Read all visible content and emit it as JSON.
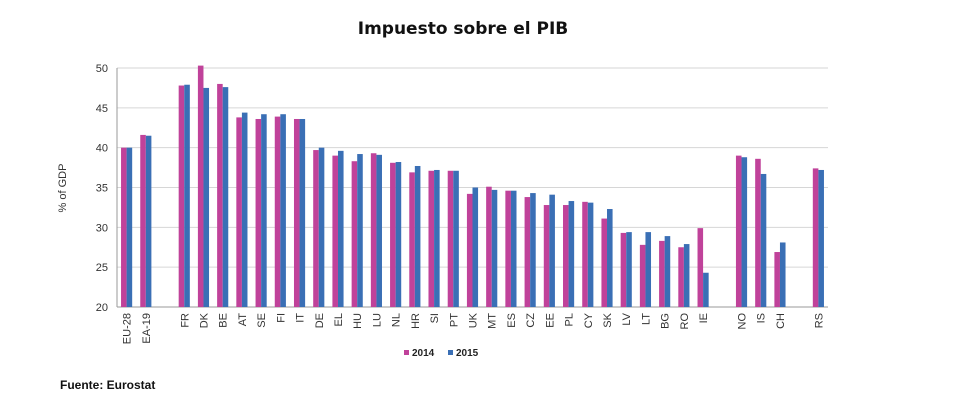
{
  "source": "Fuente: Eurostat",
  "chart_data": {
    "type": "bar",
    "title": "Impuesto sobre el PIB",
    "ylabel": "% of GDP",
    "xlabel": "",
    "ylim": [
      20,
      50
    ],
    "yticks": [
      20,
      25,
      30,
      35,
      40,
      45,
      50
    ],
    "grid": true,
    "legend": "bottom",
    "categories": [
      "EU-28",
      "EA-19",
      "",
      "FR",
      "DK",
      "BE",
      "AT",
      "SE",
      "FI",
      "IT",
      "DE",
      "EL",
      "HU",
      "LU",
      "NL",
      "HR",
      "SI",
      "PT",
      "UK",
      "MT",
      "ES",
      "CZ",
      "EE",
      "PL",
      "CY",
      "SK",
      "LV",
      "LT",
      "BG",
      "RO",
      "IE",
      "",
      "NO",
      "IS",
      "CH",
      "",
      "RS"
    ],
    "series": [
      {
        "name": "2014",
        "color": "#c0429a",
        "values": [
          40.0,
          41.6,
          null,
          47.8,
          50.3,
          48.0,
          43.8,
          43.6,
          43.9,
          43.6,
          39.7,
          39.0,
          38.3,
          39.3,
          38.1,
          36.9,
          37.1,
          37.1,
          34.2,
          35.1,
          34.6,
          33.8,
          32.8,
          32.8,
          33.2,
          31.1,
          29.3,
          27.8,
          28.3,
          27.5,
          29.9,
          null,
          39.0,
          38.6,
          26.9,
          null,
          37.4
        ],
        "value_labels_shown": false
      },
      {
        "name": "2015",
        "color": "#3a6fb5",
        "values": [
          40.0,
          41.5,
          null,
          47.9,
          47.5,
          47.6,
          44.4,
          44.2,
          44.2,
          43.6,
          40.0,
          39.6,
          39.2,
          39.1,
          38.2,
          37.7,
          37.2,
          37.1,
          35.0,
          34.7,
          34.6,
          34.3,
          34.1,
          33.3,
          33.1,
          32.3,
          29.4,
          29.4,
          28.9,
          27.9,
          24.3,
          null,
          38.8,
          36.7,
          28.1,
          null,
          37.2
        ]
      }
    ]
  }
}
